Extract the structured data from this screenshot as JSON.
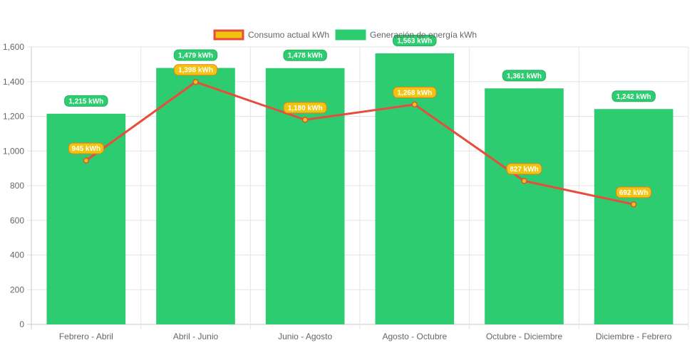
{
  "chart_data": {
    "type": "bar",
    "categories": [
      "Febrero - Abril",
      "Abril - Junio",
      "Junio - Agosto",
      "Agosto - Octubre",
      "Octubre - Diciembre",
      "Diciembre - Febrero"
    ],
    "series": [
      {
        "name": "Consumo actual kWh",
        "type": "line",
        "values": [
          945,
          1398,
          1180,
          1268,
          827,
          692
        ],
        "labels": [
          "945 kWh",
          "1,398 kWh",
          "1,180 kWh",
          "1,268 kWh",
          "827 kWh",
          "692 kWh"
        ],
        "color": "#e74c3c",
        "label_color": "#f1c40f"
      },
      {
        "name": "Generación de energía kWh",
        "type": "bar",
        "values": [
          1215,
          1479,
          1478,
          1563,
          1361,
          1242
        ],
        "labels": [
          "1,215 kWh",
          "1,479 kWh",
          "1,478 kWh",
          "1,563 kWh",
          "1,361 kWh",
          "1,242 kWh"
        ],
        "color": "#2ecc71",
        "label_color": "#27ae60"
      }
    ],
    "ylim": [
      0,
      1600
    ],
    "yticks": [
      0,
      200,
      400,
      600,
      800,
      1000,
      1200,
      1400,
      1600
    ],
    "ytick_labels": [
      "0",
      "200",
      "400",
      "600",
      "800",
      "1,000",
      "1,200",
      "1,400",
      "1,600"
    ],
    "legend": {
      "position": "top-center"
    },
    "grid": true,
    "title": "",
    "xlabel": "",
    "ylabel": ""
  }
}
